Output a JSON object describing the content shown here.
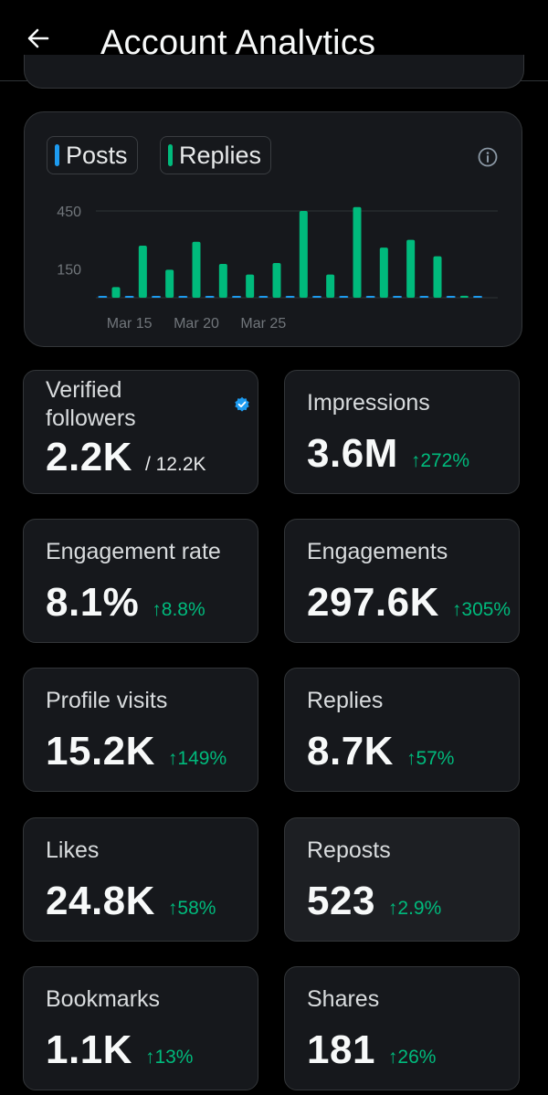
{
  "header": {
    "title": "Account Analytics",
    "back_icon": "arrow-left-icon"
  },
  "chart": {
    "legend": [
      {
        "label": "Posts",
        "color": "#1d9bf0"
      },
      {
        "label": "Replies",
        "color": "#00ba7c"
      }
    ],
    "info_icon": "info-circle-icon"
  },
  "chart_data": {
    "type": "bar",
    "x_labels": [
      "Mar 15",
      "Mar 20",
      "Mar 25"
    ],
    "y_ticks": [
      150,
      450
    ],
    "ylim": [
      0,
      500
    ],
    "grid": "top line only",
    "categories": [
      "Mar 13",
      "Mar 14",
      "Mar 15",
      "Mar 16",
      "Mar 17",
      "Mar 18",
      "Mar 19",
      "Mar 20",
      "Mar 21",
      "Mar 22",
      "Mar 23",
      "Mar 24",
      "Mar 25",
      "Mar 26",
      "Mar 27",
      "Mar 28",
      "Mar 29",
      "Mar 30",
      "Mar 31",
      "Apr 1",
      "Apr 2",
      "Apr 3",
      "Apr 4",
      "Apr 5",
      "Apr 6",
      "Apr 7",
      "Apr 8",
      "Apr 9",
      "Apr 10",
      "Apr 11"
    ],
    "series": [
      {
        "name": "Posts",
        "color": "#1d9bf0",
        "values": [
          5,
          0,
          5,
          0,
          5,
          0,
          5,
          0,
          5,
          0,
          5,
          0,
          5,
          0,
          5,
          0,
          5,
          0,
          5,
          0,
          5,
          0,
          5,
          0,
          5,
          0,
          5,
          0,
          5,
          0
        ]
      },
      {
        "name": "Replies",
        "color": "#00ba7c",
        "values": [
          0,
          55,
          0,
          270,
          0,
          145,
          0,
          290,
          0,
          175,
          0,
          120,
          0,
          180,
          0,
          450,
          0,
          120,
          0,
          470,
          0,
          260,
          0,
          300,
          0,
          215,
          0,
          10,
          0,
          0
        ]
      }
    ]
  },
  "stats": [
    {
      "label": "Verified followers",
      "value": "2.2K",
      "total": "/ 12.2K",
      "change": "",
      "verified_icon": "verified-badge-icon"
    },
    {
      "label": "Impressions",
      "value": "3.6M",
      "change": "↑272%"
    },
    {
      "label": "Engagement rate",
      "value": "8.1%",
      "change": "↑8.8%"
    },
    {
      "label": "Engagements",
      "value": "297.6K",
      "change": "↑305%"
    },
    {
      "label": "Profile visits",
      "value": "15.2K",
      "change": "↑149%"
    },
    {
      "label": "Replies",
      "value": "8.7K",
      "change": "↑57%"
    },
    {
      "label": "Likes",
      "value": "24.8K",
      "change": "↑58%"
    },
    {
      "label": "Reposts",
      "value": "523",
      "change": "↑2.9%"
    },
    {
      "label": "Bookmarks",
      "value": "1.1K",
      "change": "↑13%"
    },
    {
      "label": "Shares",
      "value": "181",
      "change": "↑26%"
    }
  ]
}
